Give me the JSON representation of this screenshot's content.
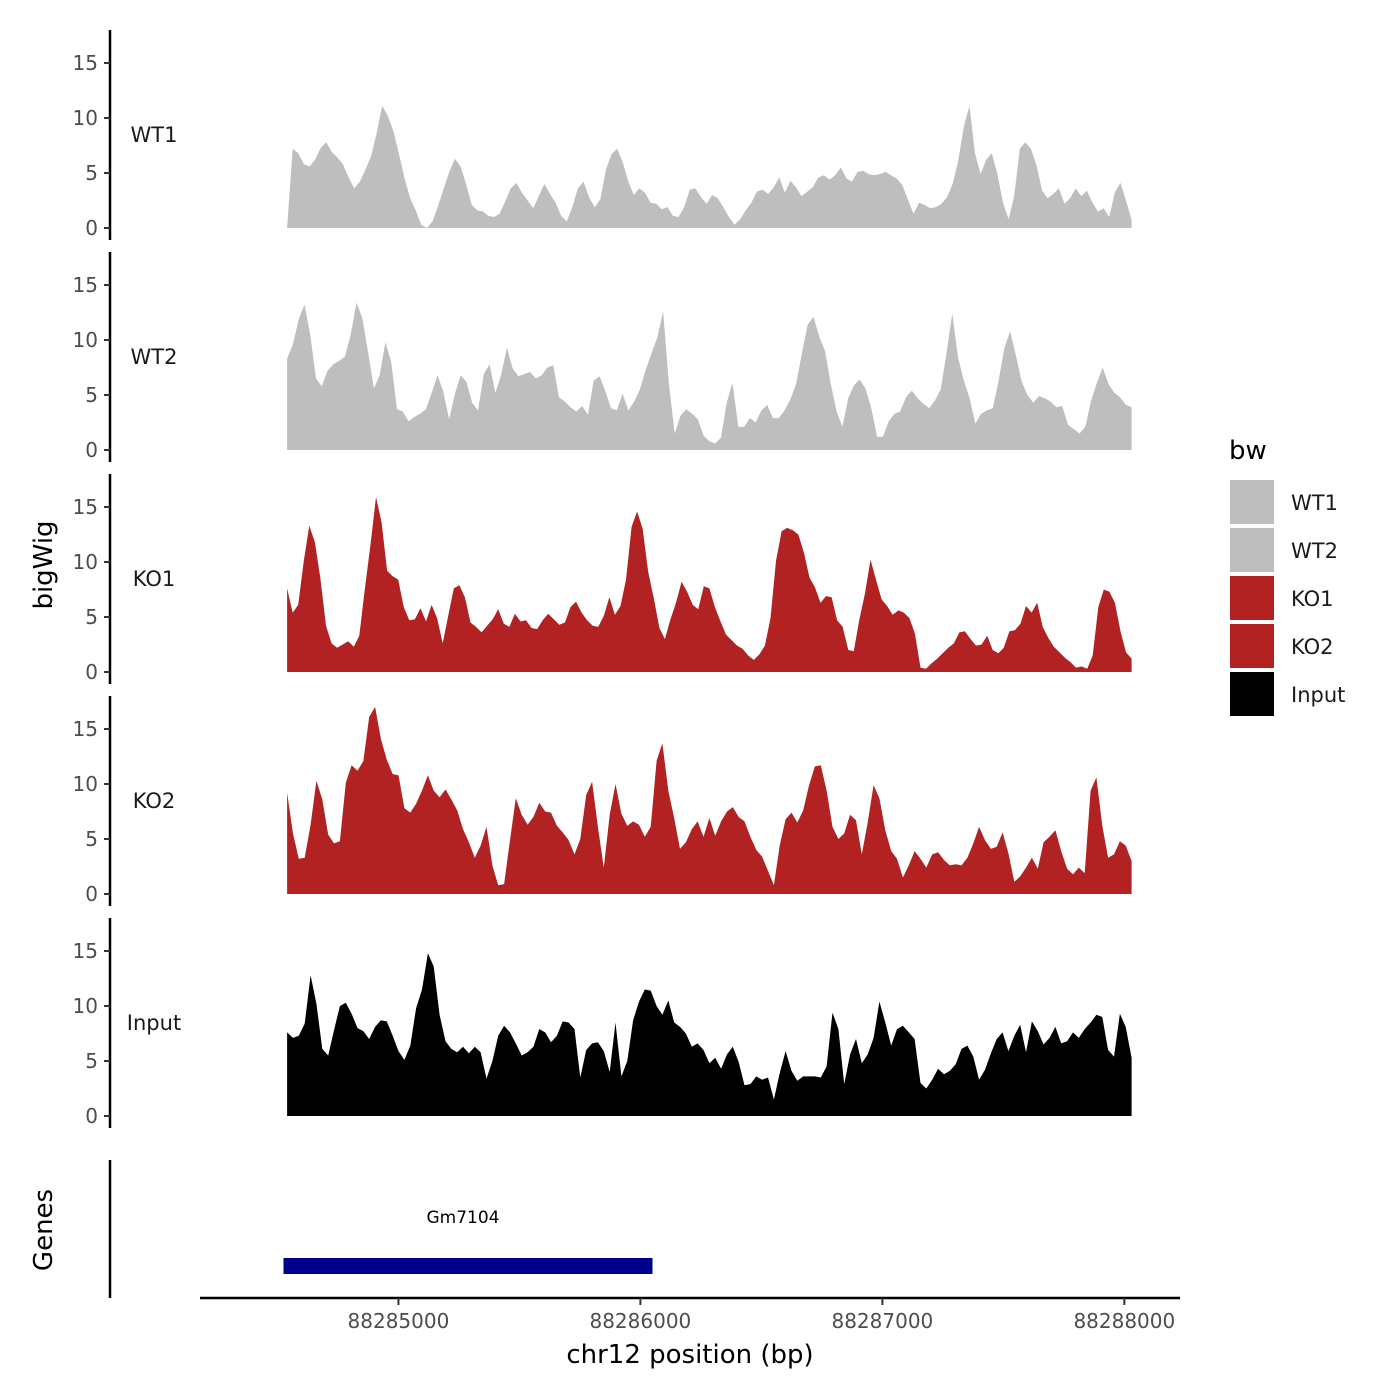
{
  "chart_data": {
    "type": "area",
    "ylabel": "bigWig",
    "xlabel": "chr12 position (bp)",
    "genes_label": "Genes",
    "yticks": [
      0,
      5,
      10,
      15
    ],
    "ylim": [
      0,
      17.5
    ],
    "xlim": [
      88284180,
      88288230
    ],
    "xticks": [
      88285000,
      88286000,
      88287000,
      88288000
    ],
    "x_range": [
      88284540,
      88288030
    ],
    "legend": {
      "title": "bw",
      "placement": "right",
      "entries": [
        {
          "name": "WT1",
          "color": "#bebebe"
        },
        {
          "name": "WT2",
          "color": "#bebebe"
        },
        {
          "name": "KO1",
          "color": "#b22222"
        },
        {
          "name": "KO2",
          "color": "#b22222"
        },
        {
          "name": "Input",
          "color": "#000000"
        }
      ]
    },
    "tracks": [
      {
        "name": "WT1",
        "color": "#bebebe",
        "values": [
          0.0,
          7.2,
          6.8,
          5.8,
          5.6,
          6.2,
          7.3,
          7.8,
          6.9,
          6.4,
          5.8,
          4.6,
          3.6,
          4.2,
          5.3,
          6.5,
          8.6,
          11.1,
          10.2,
          8.8,
          6.7,
          4.5,
          2.7,
          1.6,
          0.3,
          0.0,
          0.6,
          2.0,
          3.6,
          5.1,
          6.3,
          5.6,
          4.0,
          2.1,
          1.6,
          1.5,
          1.1,
          1.0,
          1.3,
          2.4,
          3.6,
          4.1,
          3.2,
          2.5,
          1.8,
          2.9,
          4.0,
          3.1,
          2.3,
          1.1,
          0.6,
          1.9,
          3.6,
          4.2,
          2.8,
          1.9,
          2.6,
          5.3,
          6.7,
          7.2,
          6.0,
          4.2,
          3.0,
          3.6,
          3.2,
          2.3,
          2.2,
          1.7,
          1.9,
          1.1,
          1.0,
          1.9,
          3.5,
          3.6,
          2.8,
          2.2,
          3.0,
          2.7,
          1.9,
          1.0,
          0.3,
          0.8,
          1.6,
          2.3,
          3.3,
          3.5,
          3.1,
          3.7,
          4.6,
          3.2,
          4.3,
          3.7,
          2.9,
          3.3,
          3.7,
          4.6,
          4.8,
          4.4,
          4.8,
          5.5,
          4.5,
          4.2,
          5.1,
          5.2,
          4.9,
          4.8,
          4.9,
          5.1,
          4.8,
          4.5,
          3.9,
          2.6,
          1.3,
          2.3,
          2.1,
          1.8,
          1.9,
          2.2,
          2.8,
          4.0,
          6.1,
          9.2,
          11.1,
          6.8,
          4.9,
          6.2,
          6.8,
          4.9,
          2.3,
          0.8,
          2.9,
          7.2,
          7.8,
          7.2,
          5.7,
          3.4,
          2.7,
          3.1,
          3.6,
          2.2,
          2.7,
          3.6,
          2.9,
          3.4,
          2.3,
          1.5,
          1.8,
          1.0,
          3.2,
          4.1,
          2.5,
          0.7
        ]
      },
      {
        "name": "WT2",
        "color": "#bebebe",
        "values": [
          8.3,
          9.6,
          11.9,
          13.2,
          10.5,
          6.5,
          5.8,
          7.2,
          7.8,
          8.1,
          8.5,
          10.5,
          13.4,
          12.0,
          8.9,
          5.6,
          6.8,
          9.8,
          8.0,
          3.7,
          3.5,
          2.6,
          3.0,
          3.3,
          3.7,
          5.2,
          6.8,
          5.3,
          2.8,
          5.1,
          6.8,
          6.2,
          4.3,
          3.6,
          6.9,
          7.8,
          5.2,
          6.8,
          9.3,
          7.4,
          6.7,
          6.9,
          7.1,
          6.5,
          6.8,
          7.5,
          7.7,
          4.8,
          4.4,
          3.9,
          3.5,
          4.0,
          3.2,
          6.3,
          6.7,
          5.4,
          3.8,
          3.6,
          5.1,
          3.6,
          4.4,
          5.5,
          7.3,
          8.8,
          10.2,
          12.6,
          6.0,
          1.5,
          3.1,
          3.7,
          3.3,
          2.8,
          1.3,
          0.8,
          0.6,
          1.1,
          4.3,
          6.1,
          2.1,
          2.1,
          2.9,
          2.5,
          3.6,
          4.1,
          2.9,
          2.9,
          3.6,
          4.6,
          6.0,
          8.8,
          11.4,
          12.1,
          10.3,
          9.0,
          6.0,
          3.5,
          2.1,
          4.7,
          5.9,
          6.4,
          5.6,
          3.8,
          1.2,
          1.2,
          2.6,
          3.3,
          3.5,
          4.8,
          5.4,
          4.7,
          4.2,
          3.8,
          4.5,
          5.5,
          8.8,
          12.4,
          8.4,
          6.3,
          4.7,
          2.4,
          3.3,
          3.6,
          3.8,
          6.3,
          9.3,
          10.8,
          8.6,
          6.2,
          5.0,
          4.3,
          4.9,
          4.7,
          4.4,
          3.9,
          4.0,
          2.3,
          1.9,
          1.5,
          2.1,
          4.5,
          6.1,
          7.5,
          6.0,
          5.2,
          4.8,
          4.1,
          3.9
        ]
      },
      {
        "name": "KO1",
        "color": "#b22222",
        "values": [
          7.6,
          5.4,
          6.1,
          10.1,
          13.3,
          11.8,
          8.5,
          4.2,
          2.6,
          2.2,
          2.5,
          2.8,
          2.3,
          3.3,
          7.6,
          11.5,
          15.9,
          13.6,
          9.2,
          8.7,
          8.4,
          5.9,
          4.7,
          4.8,
          5.8,
          4.6,
          6.1,
          4.9,
          2.6,
          5.1,
          7.6,
          7.9,
          6.8,
          4.5,
          4.1,
          3.6,
          4.2,
          4.8,
          5.7,
          4.4,
          4.1,
          5.3,
          4.6,
          4.7,
          4.0,
          3.9,
          4.7,
          5.3,
          4.8,
          4.3,
          4.5,
          5.9,
          6.4,
          5.4,
          4.7,
          4.2,
          4.1,
          5.1,
          6.8,
          5.2,
          6.0,
          8.4,
          13.2,
          14.6,
          13.0,
          9.1,
          6.7,
          4.0,
          3.0,
          4.8,
          6.3,
          8.2,
          7.3,
          6.1,
          5.7,
          7.8,
          7.6,
          5.9,
          4.6,
          3.4,
          2.9,
          2.4,
          2.1,
          1.5,
          1.1,
          1.6,
          2.4,
          4.9,
          10.1,
          12.8,
          13.1,
          12.9,
          12.5,
          10.9,
          8.6,
          7.7,
          6.3,
          6.9,
          6.8,
          4.7,
          4.1,
          2.0,
          1.9,
          4.8,
          7.1,
          10.2,
          8.4,
          6.6,
          6.0,
          5.2,
          5.6,
          5.4,
          4.9,
          3.5,
          0.4,
          0.3,
          0.8,
          1.2,
          1.7,
          2.2,
          2.6,
          3.6,
          3.7,
          3.0,
          2.4,
          2.5,
          3.3,
          2.0,
          1.7,
          2.2,
          3.7,
          3.8,
          4.4,
          6.0,
          5.4,
          6.3,
          4.1,
          3.1,
          2.3,
          1.8,
          1.3,
          0.9,
          0.4,
          0.5,
          0.3,
          1.5,
          5.9,
          7.5,
          7.3,
          6.3,
          3.7,
          1.8,
          1.2
        ]
      },
      {
        "name": "KO2",
        "color": "#b22222",
        "values": [
          9.2,
          5.5,
          3.2,
          3.3,
          6.3,
          10.3,
          8.6,
          5.4,
          4.6,
          4.8,
          10.1,
          11.7,
          11.2,
          12.1,
          16.1,
          17.0,
          14.1,
          12.2,
          10.9,
          10.8,
          7.8,
          7.4,
          8.2,
          9.4,
          10.8,
          9.4,
          8.8,
          9.5,
          8.6,
          7.6,
          5.9,
          4.7,
          3.3,
          4.4,
          6.1,
          2.6,
          0.8,
          0.9,
          4.9,
          8.7,
          7.2,
          6.3,
          7.0,
          8.3,
          7.5,
          7.4,
          6.2,
          5.6,
          4.9,
          3.6,
          5.0,
          9.0,
          10.2,
          6.1,
          2.4,
          7.2,
          10.0,
          7.3,
          6.2,
          6.6,
          6.3,
          5.2,
          6.1,
          12.1,
          13.7,
          9.4,
          6.9,
          4.1,
          4.7,
          5.9,
          6.6,
          5.2,
          6.9,
          5.3,
          6.6,
          7.5,
          7.9,
          7.0,
          6.6,
          5.2,
          4.0,
          3.4,
          2.1,
          0.8,
          4.4,
          6.8,
          7.4,
          6.5,
          7.6,
          9.9,
          11.6,
          11.7,
          9.4,
          6.1,
          5.0,
          5.5,
          7.2,
          6.7,
          3.6,
          6.5,
          9.9,
          8.7,
          5.8,
          3.9,
          3.2,
          1.5,
          2.6,
          3.9,
          3.2,
          2.4,
          3.6,
          3.8,
          3.1,
          2.6,
          2.7,
          2.6,
          3.3,
          4.6,
          6.1,
          4.9,
          4.1,
          4.3,
          5.6,
          3.7,
          1.1,
          1.6,
          2.4,
          3.3,
          2.3,
          4.7,
          5.2,
          5.8,
          3.9,
          2.3,
          1.8,
          2.4,
          1.9,
          9.4,
          10.6,
          6.2,
          3.3,
          3.6,
          4.8,
          4.4,
          3.0
        ]
      },
      {
        "name": "Input",
        "color": "#000000",
        "values": [
          7.6,
          7.1,
          7.3,
          8.4,
          12.8,
          10.2,
          6.1,
          5.5,
          7.8,
          10.0,
          10.3,
          9.3,
          8.0,
          7.7,
          7.0,
          8.1,
          8.7,
          8.6,
          7.3,
          5.9,
          5.1,
          6.4,
          9.8,
          11.5,
          14.8,
          13.6,
          9.2,
          6.8,
          6.1,
          5.8,
          6.3,
          5.7,
          6.3,
          5.8,
          3.4,
          5.0,
          7.3,
          8.2,
          7.6,
          6.6,
          5.5,
          5.8,
          6.3,
          7.9,
          7.6,
          6.7,
          7.3,
          8.6,
          8.5,
          7.9,
          3.5,
          6.0,
          6.6,
          6.7,
          5.9,
          4.0,
          8.5,
          3.6,
          5.0,
          8.7,
          10.4,
          11.5,
          11.4,
          10.0,
          9.2,
          10.5,
          8.5,
          8.1,
          7.5,
          6.3,
          6.6,
          6.0,
          4.8,
          5.3,
          4.3,
          5.6,
          6.3,
          4.9,
          2.8,
          2.9,
          3.6,
          3.3,
          3.5,
          1.5,
          3.9,
          5.9,
          4.1,
          3.2,
          3.6,
          3.6,
          3.6,
          3.5,
          4.5,
          9.4,
          7.9,
          2.9,
          5.6,
          7.0,
          4.8,
          5.6,
          7.1,
          10.4,
          8.5,
          6.4,
          7.9,
          8.2,
          7.6,
          7.0,
          3.0,
          2.5,
          3.3,
          4.3,
          3.8,
          4.1,
          4.7,
          6.1,
          6.4,
          5.4,
          3.3,
          4.2,
          5.7,
          7.0,
          7.6,
          5.9,
          7.3,
          8.3,
          5.8,
          8.6,
          7.7,
          6.5,
          7.1,
          8.1,
          6.6,
          6.8,
          7.6,
          7.1,
          7.9,
          8.5,
          9.2,
          9.0,
          6.0,
          5.4,
          9.3,
          8.1,
          5.3
        ]
      }
    ],
    "genes": [
      {
        "name": "Gm7104",
        "start": 88284525,
        "end": 88286050,
        "color": "#00008b"
      }
    ]
  }
}
